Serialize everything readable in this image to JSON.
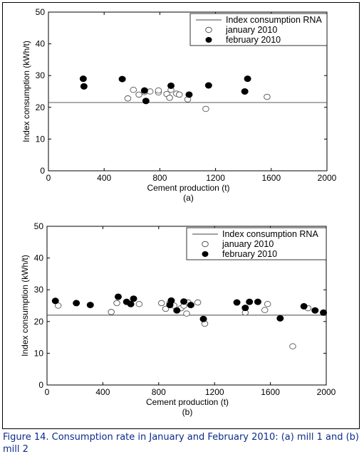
{
  "caption": "Figure 14. Consumption rate in January and February 2010: (a) mill 1 and (b) mill 2",
  "colors": {
    "caption": "#0b2a8c",
    "ink": "#000000",
    "open_marker_edge": "#555555"
  },
  "chart_data": [
    {
      "type": "scatter",
      "panel_label": "(a)",
      "xlabel": "Cement production (t)",
      "ylabel": "Index consumption (kWh/t)",
      "xlim": [
        0,
        2000
      ],
      "ylim": [
        0,
        50
      ],
      "xticks": [
        0,
        400,
        800,
        1200,
        1600,
        2000
      ],
      "yticks": [
        0,
        10,
        20,
        30,
        40,
        50
      ],
      "grid": false,
      "legend_position": "top-right",
      "reference_line": {
        "name": "Index consumption RNA",
        "y": 21.5
      },
      "series": [
        {
          "name": "january 2010",
          "marker": "open-circle",
          "points": [
            [
              570,
              22.8
            ],
            [
              610,
              25.5
            ],
            [
              650,
              24
            ],
            [
              690,
              24.8
            ],
            [
              730,
              25
            ],
            [
              790,
              24.7
            ],
            [
              790,
              25.3
            ],
            [
              850,
              24.2
            ],
            [
              870,
              23
            ],
            [
              880,
              25.5
            ],
            [
              920,
              24.3
            ],
            [
              940,
              24
            ],
            [
              1000,
              22.5
            ],
            [
              1130,
              19.5
            ],
            [
              1570,
              23.3
            ]
          ]
        },
        {
          "name": "february 2010",
          "marker": "filled-circle",
          "points": [
            [
              250,
              29
            ],
            [
              255,
              26.6
            ],
            [
              530,
              28.9
            ],
            [
              690,
              25.3
            ],
            [
              700,
              22
            ],
            [
              880,
              26.8
            ],
            [
              1010,
              24
            ],
            [
              1150,
              26.9
            ],
            [
              1410,
              25
            ],
            [
              1430,
              29
            ]
          ]
        }
      ]
    },
    {
      "type": "scatter",
      "panel_label": "(b)",
      "xlabel": "Cement production (t)",
      "ylabel": "Index consumption (kWh/t)",
      "xlim": [
        0,
        2000
      ],
      "ylim": [
        0,
        50
      ],
      "xticks": [
        0,
        400,
        800,
        1200,
        1600,
        2000
      ],
      "yticks": [
        0,
        10,
        20,
        30,
        40,
        50
      ],
      "grid": false,
      "legend_position": "top-right",
      "reference_line": {
        "name": "Index consumption RNA",
        "y": 22
      },
      "series": [
        {
          "name": "january 2010",
          "marker": "open-circle",
          "points": [
            [
              80,
              25
            ],
            [
              460,
              23
            ],
            [
              500,
              25.8
            ],
            [
              660,
              25.5
            ],
            [
              820,
              25.8
            ],
            [
              850,
              24
            ],
            [
              880,
              25.8
            ],
            [
              910,
              25
            ],
            [
              960,
              24.2
            ],
            [
              980,
              25
            ],
            [
              1000,
              22.5
            ],
            [
              1010,
              26
            ],
            [
              1080,
              26
            ],
            [
              1130,
              19.3
            ],
            [
              1420,
              22.8
            ],
            [
              1560,
              23.6
            ],
            [
              1580,
              25.5
            ],
            [
              1760,
              12.2
            ],
            [
              1870,
              24.2
            ]
          ]
        },
        {
          "name": "february 2010",
          "marker": "filled-circle",
          "points": [
            [
              60,
              26.5
            ],
            [
              210,
              25.8
            ],
            [
              310,
              25.2
            ],
            [
              510,
              27.8
            ],
            [
              570,
              26.2
            ],
            [
              600,
              25.5
            ],
            [
              620,
              27.2
            ],
            [
              880,
              25.2
            ],
            [
              890,
              26.6
            ],
            [
              930,
              23.5
            ],
            [
              980,
              26.3
            ],
            [
              1030,
              25.2
            ],
            [
              1120,
              20.8
            ],
            [
              1360,
              26
            ],
            [
              1420,
              24.3
            ],
            [
              1450,
              26.2
            ],
            [
              1510,
              26.2
            ],
            [
              1670,
              21
            ],
            [
              1840,
              24.8
            ],
            [
              1920,
              23.5
            ],
            [
              1980,
              22.8
            ]
          ]
        }
      ]
    }
  ]
}
